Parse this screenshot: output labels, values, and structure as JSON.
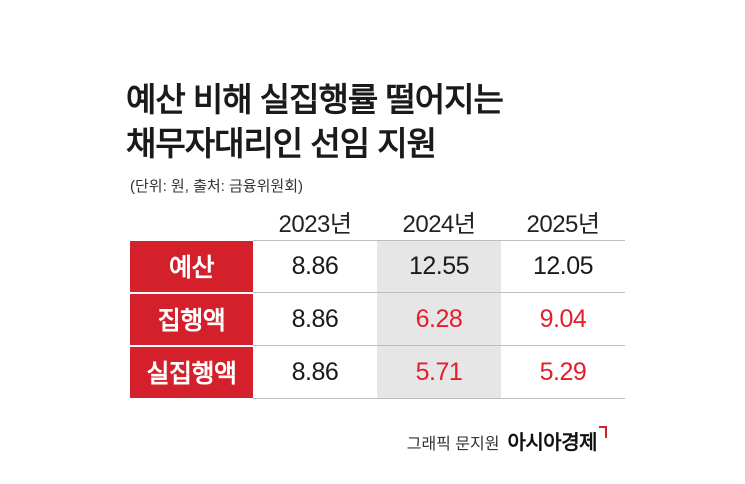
{
  "title_lines": [
    "예산 비해 실집행률 떨어지는",
    "채무자대리인 선임 지원"
  ],
  "unit_note": "(단위: 원, 출처: 금융위원회)",
  "chart_data": {
    "type": "table",
    "columns": [
      "2023년",
      "2024년",
      "2025년"
    ],
    "rows": [
      {
        "label": "예산",
        "values": [
          "8.86",
          "12.55",
          "12.05"
        ]
      },
      {
        "label": "집행액",
        "values": [
          "8.86",
          "6.28",
          "9.04"
        ]
      },
      {
        "label": "실집행액",
        "values": [
          "8.86",
          "5.71",
          "5.29"
        ]
      }
    ],
    "colors": {
      "label_bg": "#d3202a",
      "highlight_text": "#e2202c",
      "highlight_col_bg": "#e6e6e6"
    }
  },
  "footer": {
    "credit": "그래픽 문지원",
    "logo": "아시아경제"
  }
}
